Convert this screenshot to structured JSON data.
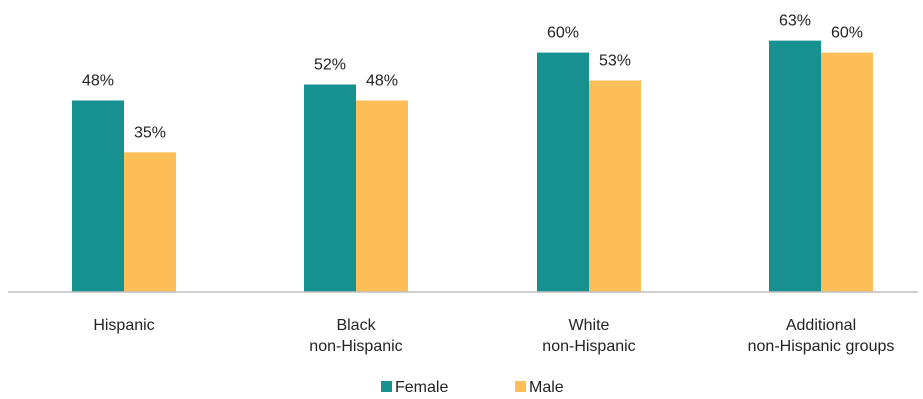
{
  "chart_data": {
    "type": "bar",
    "categories": [
      [
        "Hispanic"
      ],
      [
        "Black",
        "non-Hispanic"
      ],
      [
        "White",
        "non-Hispanic"
      ],
      [
        "Additional",
        "non-Hispanic groups"
      ]
    ],
    "series": [
      {
        "name": "Female",
        "color": "#17918f",
        "values": [
          48,
          52,
          60,
          63
        ],
        "labels": [
          "48%",
          "52%",
          "60%",
          "63%"
        ]
      },
      {
        "name": "Male",
        "color": "#fdbe57",
        "values": [
          35,
          48,
          53,
          60
        ],
        "labels": [
          "35%",
          "48%",
          "53%",
          "60%"
        ]
      }
    ],
    "ylim": [
      0,
      100
    ],
    "grid": false,
    "legend_position": "bottom-center"
  }
}
